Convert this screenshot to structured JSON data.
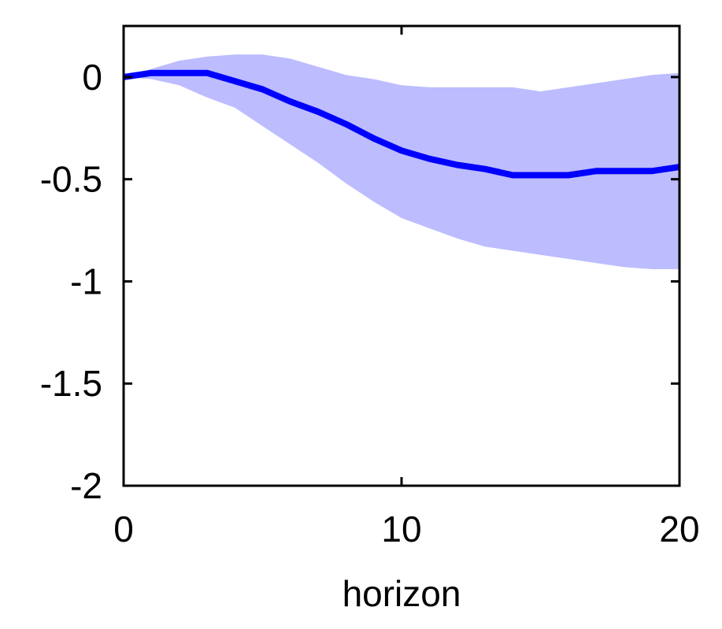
{
  "chart_data": {
    "type": "area",
    "title": "",
    "xlabel": "horizon",
    "ylabel": "",
    "xlim": [
      0,
      20
    ],
    "ylim": [
      -2,
      0.25
    ],
    "grid": false,
    "x_ticks": [
      0,
      10,
      20
    ],
    "x_tick_labels": [
      "0",
      "10",
      "20"
    ],
    "y_ticks": [
      0,
      -0.5,
      -1,
      -1.5,
      -2
    ],
    "y_tick_labels": [
      "0",
      "-0.5",
      "-1",
      "-1.5",
      "-2"
    ],
    "x": [
      0,
      1,
      2,
      3,
      4,
      5,
      6,
      7,
      8,
      9,
      10,
      11,
      12,
      13,
      14,
      15,
      16,
      17,
      18,
      19,
      20
    ],
    "series": [
      {
        "values": [
          0.0,
          0.02,
          0.02,
          0.02,
          -0.02,
          -0.06,
          -0.12,
          -0.17,
          -0.23,
          -0.3,
          -0.36,
          -0.4,
          -0.43,
          -0.45,
          -0.48,
          -0.48,
          -0.48,
          -0.46,
          -0.46,
          -0.46,
          -0.44
        ],
        "color": "#0000ff"
      }
    ],
    "band": {
      "upper": [
        0.0,
        0.04,
        0.08,
        0.1,
        0.11,
        0.11,
        0.09,
        0.05,
        0.01,
        -0.01,
        -0.04,
        -0.05,
        -0.05,
        -0.05,
        -0.05,
        -0.07,
        -0.05,
        -0.03,
        -0.01,
        0.01,
        0.02
      ],
      "lower": [
        0.0,
        -0.01,
        -0.04,
        -0.1,
        -0.15,
        -0.24,
        -0.33,
        -0.42,
        -0.52,
        -0.61,
        -0.69,
        -0.74,
        -0.79,
        -0.83,
        -0.85,
        -0.87,
        -0.89,
        -0.91,
        -0.93,
        -0.94,
        -0.94
      ],
      "color": "#bcbcff"
    }
  }
}
